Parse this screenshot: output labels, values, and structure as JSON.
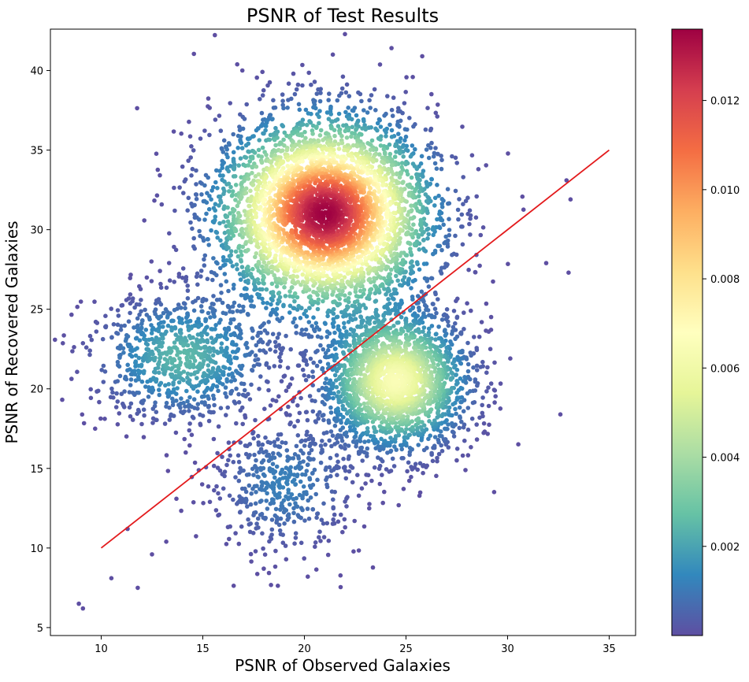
{
  "chart_data": {
    "type": "scatter",
    "title": "PSNR of Test Results",
    "xlabel": "PSNR of Observed Galaxies",
    "ylabel": "PSNR of Recovered Galaxies",
    "xlim": [
      7.5,
      36.3
    ],
    "ylim": [
      4.5,
      42.6
    ],
    "x_ticks": [
      "10",
      "15",
      "20",
      "25",
      "30",
      "35"
    ],
    "y_ticks": [
      "5",
      "10",
      "15",
      "20",
      "25",
      "30",
      "35",
      "40"
    ],
    "grid": false,
    "colormap": "Spectral_r",
    "colorbar": {
      "range": [
        0.0,
        0.0136
      ],
      "ticks": [
        "0.002",
        "0.004",
        "0.006",
        "0.008",
        "0.010",
        "0.012"
      ]
    },
    "reference_line": {
      "x": [
        10,
        35
      ],
      "y": [
        10,
        35
      ],
      "color": "#e31a1c"
    },
    "density_clusters": [
      {
        "center": [
          21.0,
          31.0
        ],
        "spread": [
          2.6,
          3.0
        ],
        "peak_density": 0.0136
      },
      {
        "center": [
          24.5,
          20.5
        ],
        "spread": [
          1.8,
          2.2
        ],
        "peak_density": 0.0065
      },
      {
        "center": [
          14.0,
          22.0
        ],
        "spread": [
          2.2,
          2.0
        ],
        "peak_density": 0.0025
      },
      {
        "center": [
          19.0,
          14.0
        ],
        "spread": [
          1.8,
          2.2
        ],
        "peak_density": 0.0012
      }
    ],
    "outlier_points": [
      [
        8.9,
        6.5
      ],
      [
        9.1,
        6.2
      ],
      [
        10.5,
        8.1
      ],
      [
        11.8,
        7.5
      ],
      [
        12.5,
        9.6
      ],
      [
        9.7,
        17.5
      ],
      [
        33.0,
        27.3
      ],
      [
        33.1,
        31.9
      ],
      [
        32.9,
        33.1
      ],
      [
        31.9,
        27.9
      ],
      [
        21.4,
        41.0
      ],
      [
        25.8,
        40.9
      ],
      [
        11.3,
        11.2
      ],
      [
        18.0,
        8.7
      ],
      [
        13.2,
        10.4
      ]
    ]
  }
}
